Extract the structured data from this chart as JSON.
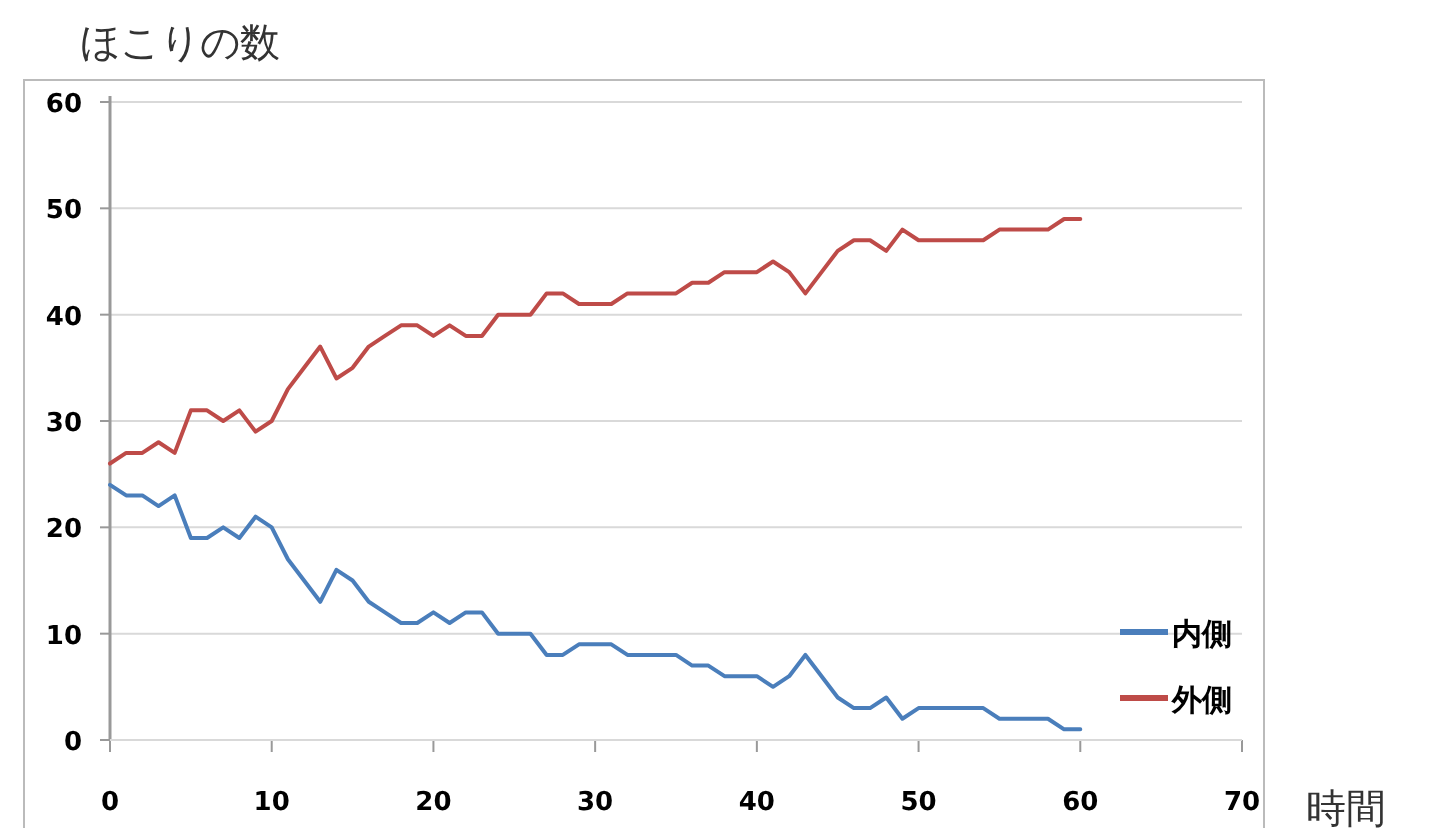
{
  "chart_data": {
    "type": "line",
    "ylabel": "ほこりの数",
    "xlabel": "時間",
    "x": [
      0,
      1,
      2,
      3,
      4,
      5,
      6,
      7,
      8,
      9,
      10,
      11,
      12,
      13,
      14,
      15,
      16,
      17,
      18,
      19,
      20,
      21,
      22,
      23,
      24,
      25,
      26,
      27,
      28,
      29,
      30,
      31,
      32,
      33,
      34,
      35,
      36,
      37,
      38,
      39,
      40,
      41,
      42,
      43,
      44,
      45,
      46,
      47,
      48,
      49,
      50,
      51,
      52,
      53,
      54,
      55,
      56,
      57,
      58,
      59,
      60
    ],
    "series": [
      {
        "name": "内側",
        "color": "#4a7ebb",
        "values": [
          24,
          23,
          23,
          22,
          23,
          19,
          19,
          20,
          19,
          21,
          20,
          17,
          15,
          13,
          16,
          15,
          13,
          12,
          11,
          11,
          12,
          11,
          12,
          12,
          10,
          10,
          10,
          8,
          8,
          9,
          9,
          9,
          8,
          8,
          8,
          8,
          7,
          7,
          6,
          6,
          6,
          5,
          6,
          8,
          6,
          4,
          3,
          3,
          4,
          2,
          3,
          3,
          3,
          3,
          3,
          2,
          2,
          2,
          2,
          1,
          1
        ]
      },
      {
        "name": "外側",
        "color": "#be4b48",
        "values": [
          26,
          27,
          27,
          28,
          27,
          31,
          31,
          30,
          31,
          29,
          30,
          33,
          35,
          37,
          34,
          35,
          37,
          38,
          39,
          39,
          38,
          39,
          38,
          38,
          40,
          40,
          40,
          42,
          42,
          41,
          41,
          41,
          42,
          42,
          42,
          42,
          43,
          43,
          44,
          44,
          44,
          45,
          44,
          42,
          44,
          46,
          47,
          47,
          46,
          48,
          47,
          47,
          47,
          47,
          47,
          48,
          48,
          48,
          48,
          49,
          49
        ]
      }
    ],
    "xlim": [
      0,
      70
    ],
    "xticks": [
      0,
      10,
      20,
      30,
      40,
      50,
      60,
      70
    ],
    "ylim": [
      0,
      60
    ],
    "yticks": [
      0,
      10,
      20,
      30,
      40,
      50,
      60
    ],
    "grid": "y",
    "legend": "right",
    "marker": "none",
    "line_style": "solid"
  }
}
